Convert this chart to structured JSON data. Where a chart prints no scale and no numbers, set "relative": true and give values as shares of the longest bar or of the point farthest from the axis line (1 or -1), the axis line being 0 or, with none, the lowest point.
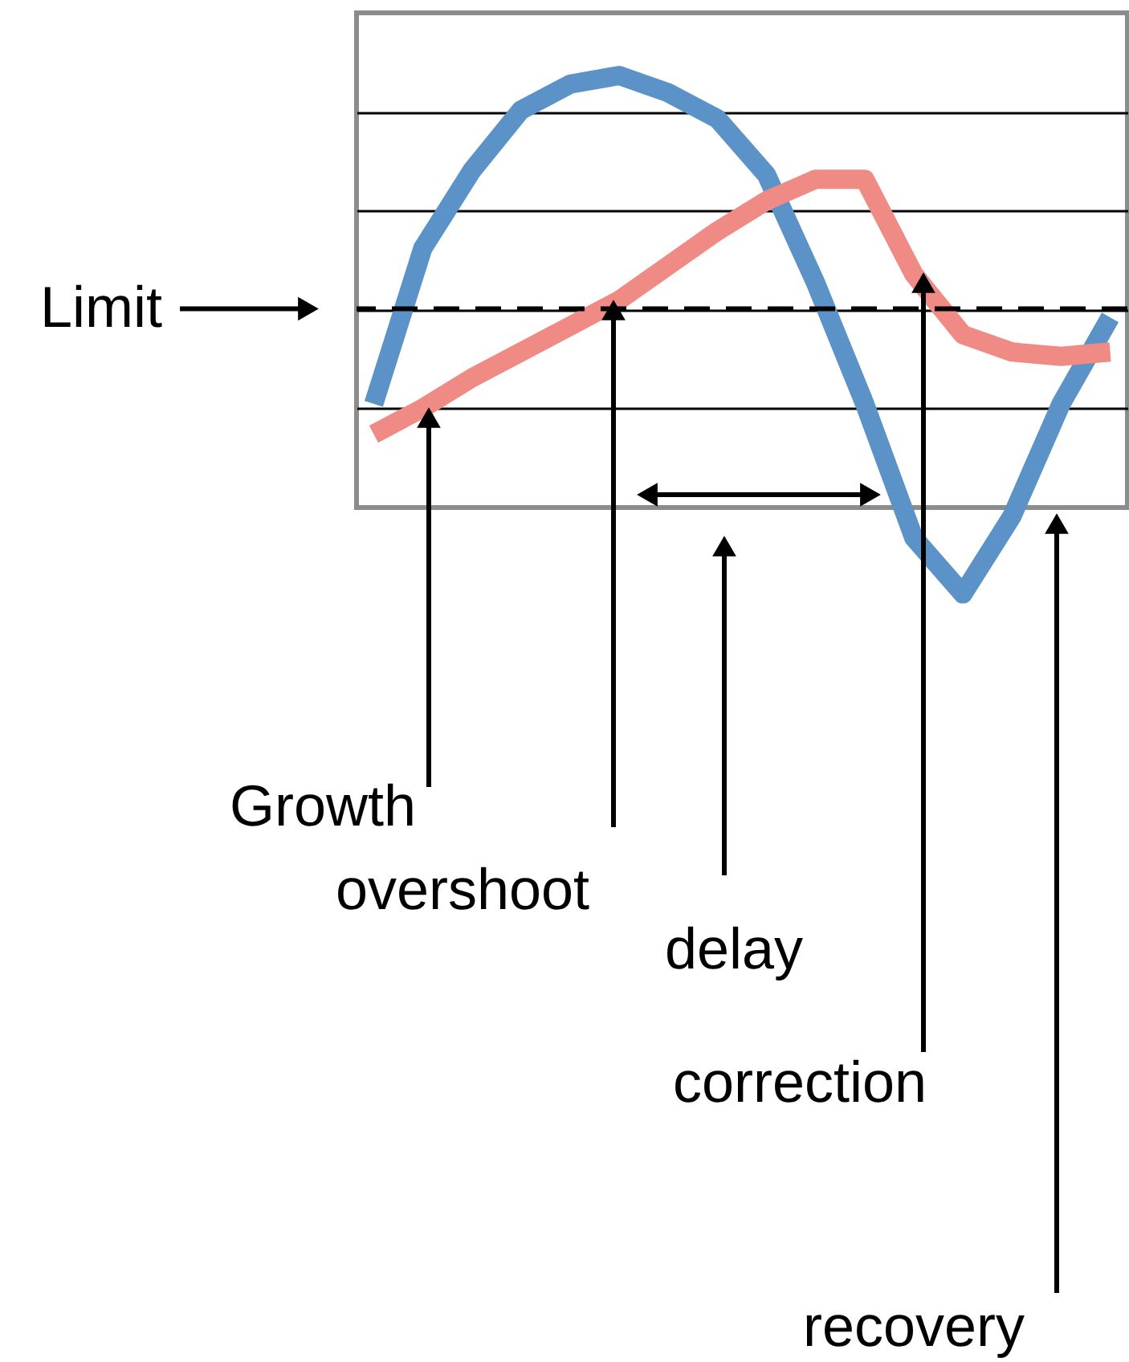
{
  "chart_data": {
    "type": "line",
    "relative": true,
    "grid": "y",
    "categories": [
      null,
      null,
      null,
      null,
      null,
      null,
      null,
      null,
      null,
      null,
      null,
      null,
      null,
      null,
      null,
      null
    ],
    "series": [
      {
        "color": "#5b93c8",
        "values": [
          0.24,
          0.6,
          0.78,
          0.92,
          0.98,
          1.0,
          0.96,
          0.9,
          0.77,
          0.52,
          0.24,
          -0.07,
          -0.2,
          -0.02,
          0.24,
          0.44
        ]
      },
      {
        "color": "#f08a84",
        "values": [
          0.17,
          0.23,
          0.3,
          0.36,
          0.42,
          0.48,
          0.56,
          0.64,
          0.71,
          0.76,
          0.76,
          0.54,
          0.4,
          0.36,
          0.35,
          0.36
        ]
      }
    ],
    "ref_lines": [
      {
        "axis": "y",
        "value": 0.46,
        "label": "Limit",
        "line_style": "dashed",
        "color": "#000000"
      }
    ],
    "annotations": [
      "Growth",
      "overshoot",
      "delay",
      "correction",
      "recovery"
    ]
  }
}
